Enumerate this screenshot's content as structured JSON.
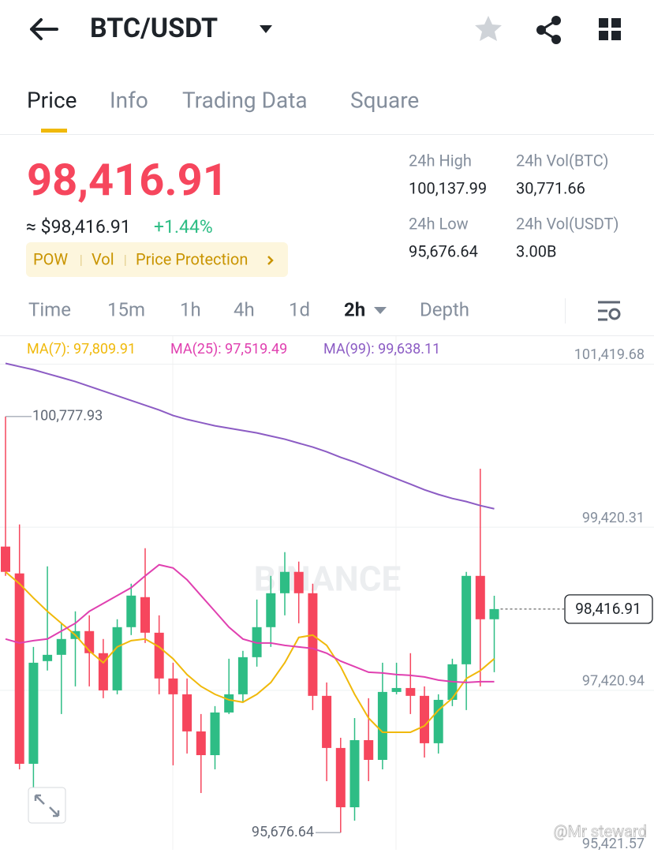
{
  "header": {
    "pair": "BTC/USDT"
  },
  "tabs": [
    "Price",
    "Info",
    "Trading Data",
    "Square"
  ],
  "price": {
    "last": "98,416.91",
    "approx": "≈ $98,416.91",
    "change": "+1.44%",
    "tags": [
      "POW",
      "Vol",
      "Price Protection"
    ]
  },
  "stats": [
    {
      "label": "24h High",
      "value": "100,137.99"
    },
    {
      "label": "24h Vol(BTC)",
      "value": "30,771.66"
    },
    {
      "label": "24h Low",
      "value": "95,676.64"
    },
    {
      "label": "24h Vol(USDT)",
      "value": "3.00B"
    }
  ],
  "intervals": [
    "Time",
    "15m",
    "1h",
    "4h",
    "1d",
    "2h",
    "Depth"
  ],
  "watermark": "@Mr steward",
  "chart": {
    "type": "candlestick",
    "logo": "BINANCE",
    "ylim": [
      95465,
      101763
    ],
    "yticks": [
      {
        "value": 101419.68,
        "label": "101,419.68"
      },
      {
        "value": 99420.31,
        "label": "99,420.31"
      },
      {
        "value": 97420.94,
        "label": "97,420.94"
      },
      {
        "value": 95421.57,
        "label": "95,421.57"
      }
    ],
    "up_color": "#2ebd85",
    "down_color": "#f6465d",
    "high_label": {
      "value": 100777.93,
      "label": "100,777.93"
    },
    "low_label": {
      "value": 95676.64,
      "label": "95,676.64"
    },
    "current": {
      "value": 98416.91,
      "label": "98,416.91"
    },
    "candles": [
      {
        "o": 99183,
        "h": 100777.93,
        "l": 98824,
        "c": 98873
      },
      {
        "o": 98854,
        "h": 99454,
        "l": 96452,
        "c": 96520
      },
      {
        "o": 96520,
        "h": 97953,
        "l": 96210,
        "c": 97759
      },
      {
        "o": 97779,
        "h": 98941,
        "l": 97663,
        "c": 97856
      },
      {
        "o": 97856,
        "h": 98243,
        "l": 97130,
        "c": 98050
      },
      {
        "o": 98050,
        "h": 98389,
        "l": 97469,
        "c": 98147
      },
      {
        "o": 98147,
        "h": 98340,
        "l": 97469,
        "c": 97876
      },
      {
        "o": 97876,
        "h": 98050,
        "l": 97324,
        "c": 97420
      },
      {
        "o": 97420,
        "h": 98292,
        "l": 97372,
        "c": 98195
      },
      {
        "o": 98195,
        "h": 98728,
        "l": 98098,
        "c": 98582
      },
      {
        "o": 98563,
        "h": 99163,
        "l": 98001,
        "c": 98127
      },
      {
        "o": 98127,
        "h": 98340,
        "l": 97372,
        "c": 97566
      },
      {
        "o": 97566,
        "h": 97759,
        "l": 96501,
        "c": 97372
      },
      {
        "o": 97372,
        "h": 97566,
        "l": 96646,
        "c": 96917
      },
      {
        "o": 96917,
        "h": 97130,
        "l": 96162,
        "c": 96626
      },
      {
        "o": 96626,
        "h": 97227,
        "l": 96452,
        "c": 97149
      },
      {
        "o": 97149,
        "h": 97808,
        "l": 97130,
        "c": 97372
      },
      {
        "o": 97372,
        "h": 97905,
        "l": 97275,
        "c": 97827
      },
      {
        "o": 97827,
        "h": 98534,
        "l": 97711,
        "c": 98195
      },
      {
        "o": 98195,
        "h": 98824,
        "l": 97953,
        "c": 98611
      },
      {
        "o": 98611,
        "h": 99115,
        "l": 98340,
        "c": 98873
      },
      {
        "o": 98873,
        "h": 98999,
        "l": 98243,
        "c": 98611
      },
      {
        "o": 98611,
        "h": 98728,
        "l": 97178,
        "c": 97353
      },
      {
        "o": 97353,
        "h": 97517,
        "l": 96307,
        "c": 96714
      },
      {
        "o": 96714,
        "h": 96839,
        "l": 95676.64,
        "c": 95987
      },
      {
        "o": 95987,
        "h": 97081,
        "l": 95823,
        "c": 96810
      },
      {
        "o": 96810,
        "h": 97324,
        "l": 96307,
        "c": 96568
      },
      {
        "o": 96568,
        "h": 97759,
        "l": 96452,
        "c": 97401
      },
      {
        "o": 97401,
        "h": 97759,
        "l": 97372,
        "c": 97449
      },
      {
        "o": 97449,
        "h": 97876,
        "l": 97130,
        "c": 97353
      },
      {
        "o": 97353,
        "h": 97469,
        "l": 96597,
        "c": 96772
      },
      {
        "o": 96772,
        "h": 97372,
        "l": 96646,
        "c": 97304
      },
      {
        "o": 97304,
        "h": 97808,
        "l": 97227,
        "c": 97740
      },
      {
        "o": 97740,
        "h": 98873,
        "l": 97178,
        "c": 98824
      },
      {
        "o": 98824,
        "h": 100137.99,
        "l": 97469,
        "c": 98292
      },
      {
        "o": 98292,
        "h": 98580,
        "l": 97643,
        "c": 98416.91
      }
    ],
    "series": [
      {
        "name": "MA(7)",
        "label": "MA(7): 97,809.91",
        "color": "#f0b90b",
        "values": [
          98873,
          98728,
          98553,
          98389,
          98243,
          98098,
          97905,
          97759,
          97953,
          98030,
          98050,
          97953,
          97808,
          97614,
          97469,
          97372,
          97304,
          97275,
          97372,
          97517,
          97759,
          98069,
          98098,
          97972,
          97711,
          97372,
          97081,
          96907,
          96907,
          96907,
          96985,
          97178,
          97324,
          97566,
          97662,
          97808
        ]
      },
      {
        "name": "MA(25)",
        "label": "MA(25): 97,519.49",
        "color": "#e040b0",
        "values": [
          98050,
          98001,
          98030,
          98050,
          98147,
          98243,
          98389,
          98486,
          98582,
          98679,
          98824,
          98960,
          98921,
          98776,
          98582,
          98389,
          98195,
          98050,
          98001,
          98001,
          97972,
          97953,
          97934,
          97876,
          97779,
          97711,
          97643,
          97633,
          97614,
          97604,
          97585,
          97546,
          97527,
          97517,
          97527,
          97527
        ]
      },
      {
        "name": "MA(99)",
        "label": "MA(99): 99,638.11",
        "color": "#8c5cc4",
        "values": [
          101429,
          101390,
          101352,
          101303,
          101255,
          101206,
          101148,
          101090,
          101032,
          100974,
          100916,
          100858,
          100790,
          100742,
          100703,
          100664,
          100635,
          100606,
          100577,
          100538,
          100500,
          100451,
          100403,
          100345,
          100277,
          100219,
          100151,
          100083,
          100015,
          99948,
          99880,
          99822,
          99773,
          99735,
          99686,
          99647
        ]
      }
    ]
  }
}
